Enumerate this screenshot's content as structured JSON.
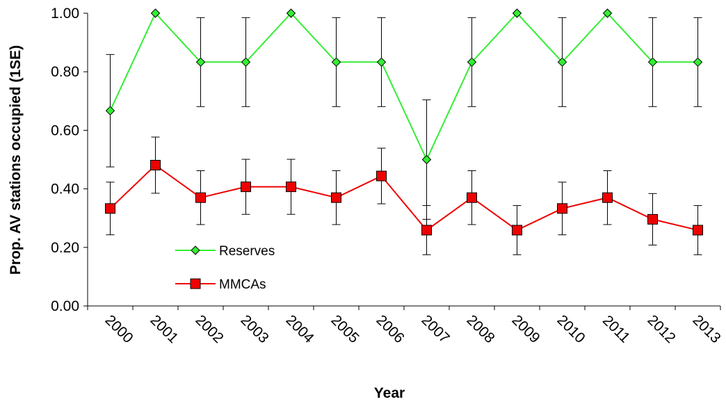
{
  "chart_data": {
    "type": "line",
    "title": "",
    "xlabel": "Year",
    "ylabel": "Prop. AV stations occupied (1SE)",
    "ylim": [
      0,
      1
    ],
    "y_ticks": [
      "0.00",
      "0.20",
      "0.40",
      "0.60",
      "0.80",
      "1.00"
    ],
    "categories": [
      "2000",
      "2001",
      "2002",
      "2003",
      "2004",
      "2005",
      "2006",
      "2007",
      "2008",
      "2009",
      "2010",
      "2011",
      "2012",
      "2013"
    ],
    "grid": false,
    "legend_position": "lower-left",
    "series": [
      {
        "name": "Reserves",
        "color": "#33ee33",
        "marker": "diamond",
        "values": [
          0.667,
          1.0,
          0.833,
          0.833,
          1.0,
          0.833,
          0.833,
          0.5,
          0.833,
          1.0,
          0.833,
          1.0,
          0.833,
          0.833
        ],
        "error_low": [
          0.475,
          1.0,
          0.681,
          0.681,
          1.0,
          0.681,
          0.681,
          0.296,
          0.681,
          1.0,
          0.681,
          1.0,
          0.681,
          0.681
        ],
        "error_high": [
          0.859,
          1.0,
          0.985,
          0.985,
          1.0,
          0.985,
          0.985,
          0.704,
          0.985,
          1.0,
          0.985,
          1.0,
          0.985,
          0.985
        ]
      },
      {
        "name": "MMCAs",
        "color": "#ee0000",
        "marker": "square",
        "values": [
          0.333,
          0.481,
          0.37,
          0.407,
          0.407,
          0.37,
          0.444,
          0.259,
          0.37,
          0.259,
          0.333,
          0.37,
          0.296,
          0.259
        ],
        "error_low": [
          0.243,
          0.385,
          0.278,
          0.313,
          0.313,
          0.278,
          0.349,
          0.175,
          0.278,
          0.175,
          0.243,
          0.278,
          0.208,
          0.175
        ],
        "error_high": [
          0.423,
          0.577,
          0.462,
          0.501,
          0.501,
          0.462,
          0.539,
          0.343,
          0.462,
          0.343,
          0.423,
          0.462,
          0.384,
          0.343
        ]
      }
    ]
  }
}
